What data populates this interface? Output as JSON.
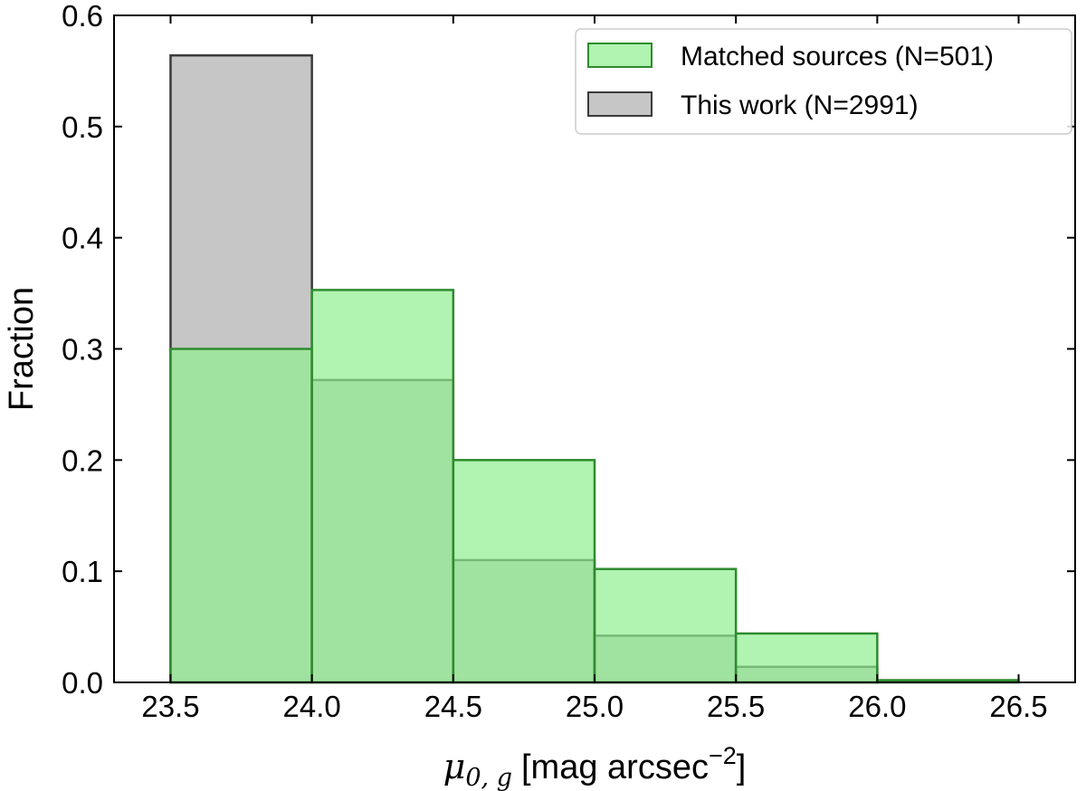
{
  "chart_data": {
    "type": "bar",
    "title": "",
    "xlabel": {
      "symbol": "μ",
      "subscript": "0, g",
      "unit_text": "[mag arcsec",
      "unit_exponent": "−2",
      "unit_close": "]"
    },
    "ylabel": "Fraction",
    "xlim": [
      23.3,
      26.7
    ],
    "ylim": [
      0.0,
      0.6
    ],
    "xticks": [
      "23.5",
      "24.0",
      "24.5",
      "25.0",
      "25.5",
      "26.0",
      "26.5"
    ],
    "yticks": [
      "0.0",
      "0.1",
      "0.2",
      "0.3",
      "0.4",
      "0.5",
      "0.6"
    ],
    "bin_edges": [
      23.5,
      24.0,
      24.5,
      25.0,
      25.5,
      26.0,
      26.5
    ],
    "series": [
      {
        "name": "Matched sources (N=501)",
        "values": [
          0.3,
          0.353,
          0.2,
          0.102,
          0.044,
          0.002
        ],
        "fill": "#90ee90",
        "stroke": "#2e8b2e",
        "opacity": 0.7
      },
      {
        "name": "This work (N=2991)",
        "values": [
          0.564,
          0.272,
          0.11,
          0.042,
          0.014,
          0.0
        ],
        "fill": "#808080",
        "stroke": "#3a3a3a",
        "opacity": 0.45
      }
    ],
    "legend": "top-right",
    "grid": false
  }
}
